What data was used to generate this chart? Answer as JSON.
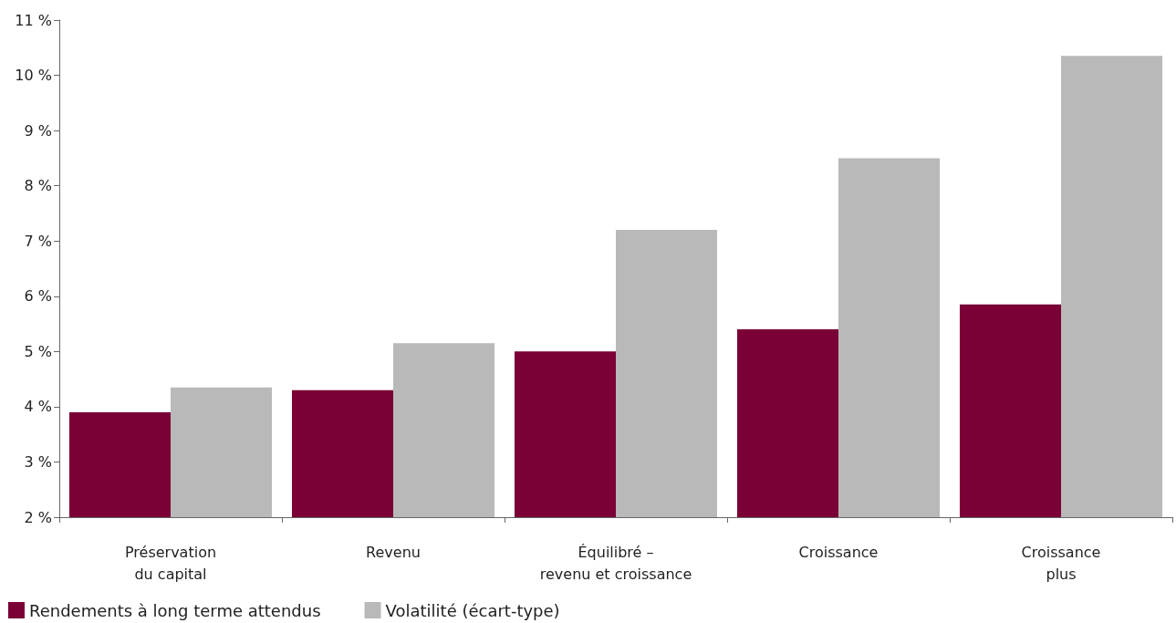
{
  "chart_data": {
    "type": "bar",
    "categories": [
      "Préservation\ndu capital",
      "Revenu",
      "Équilibré –\nrevenu et croissance",
      "Croissance",
      "Croissance\nplus"
    ],
    "series": [
      {
        "name": "Rendements à long terme attendus",
        "color": "#7a0036",
        "values": [
          3.9,
          4.3,
          5.0,
          5.4,
          5.85
        ]
      },
      {
        "name": "Volatilité (écart-type)",
        "color": "#b8b9b8",
        "values": [
          4.35,
          5.15,
          7.2,
          8.5,
          10.35
        ]
      }
    ],
    "ylim": [
      2,
      11
    ],
    "yticks": [
      {
        "value": 2,
        "label": "2 %"
      },
      {
        "value": 3,
        "label": "3 %"
      },
      {
        "value": 4,
        "label": "4 %"
      },
      {
        "value": 5,
        "label": "5 %"
      },
      {
        "value": 6,
        "label": "6 %"
      },
      {
        "value": 7,
        "label": "7 %"
      },
      {
        "value": 8,
        "label": "8 %"
      },
      {
        "value": 9,
        "label": "9 %"
      },
      {
        "value": 10,
        "label": "10 %"
      },
      {
        "value": 11,
        "label": "11 %"
      }
    ],
    "grid": false,
    "legend": "bottom left"
  }
}
